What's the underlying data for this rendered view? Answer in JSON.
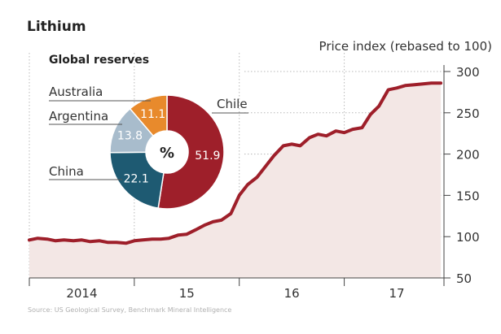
{
  "title": "Lithium",
  "source": "Source: US Geological Survey,  Benchmark Mineral Intelligence",
  "colors": {
    "line": "#9e1f2a",
    "area": "#f3e7e5",
    "grid": "#b8b8b8",
    "axis": "#444444",
    "text": "#333333",
    "source": "#b0b0b0"
  },
  "chart_data": [
    {
      "type": "area",
      "title": "Lithium",
      "ylabel": "Price index (rebased to 100)",
      "xlabel": "",
      "x_tick_labels": [
        "2014",
        "15",
        "16",
        "17"
      ],
      "y_ticks": [
        50,
        100,
        150,
        200,
        250,
        300
      ],
      "ylim": [
        50,
        300
      ],
      "xlim": [
        2014.0,
        2017.95
      ],
      "grid": "dotted, vertical at year boundaries, horizontal at y ticks",
      "y_axis_position": "right",
      "series": [
        {
          "x": [
            2014.0,
            2014.08,
            2014.17,
            2014.25,
            2014.33,
            2014.42,
            2014.5,
            2014.58,
            2014.67,
            2014.75,
            2014.83,
            2014.92,
            2015.0,
            2015.08,
            2015.17,
            2015.25,
            2015.33,
            2015.42,
            2015.5,
            2015.58,
            2015.67,
            2015.75,
            2015.83,
            2015.92,
            2016.0,
            2016.08,
            2016.17,
            2016.25,
            2016.33,
            2016.42,
            2016.5,
            2016.58,
            2016.67,
            2016.75,
            2016.83,
            2016.92,
            2017.0,
            2017.08,
            2017.17,
            2017.25,
            2017.33,
            2017.42,
            2017.5,
            2017.58,
            2017.67,
            2017.75,
            2017.83,
            2017.92
          ],
          "values": [
            96,
            98,
            97,
            95,
            96,
            95,
            96,
            94,
            95,
            93,
            93,
            92,
            95,
            96,
            97,
            97,
            98,
            102,
            103,
            108,
            114,
            118,
            120,
            128,
            150,
            163,
            172,
            185,
            198,
            210,
            212,
            210,
            220,
            224,
            222,
            228,
            226,
            230,
            232,
            248,
            258,
            278,
            280,
            283,
            284,
            285,
            286,
            286
          ]
        }
      ]
    },
    {
      "type": "pie",
      "title": "Global reserves",
      "center_label": "%",
      "labels": [
        "Chile",
        "China",
        "Argentina",
        "Australia"
      ],
      "values": [
        51.9,
        22.1,
        13.8,
        11.1
      ],
      "value_labels": [
        "51.9",
        "22.1",
        "13.8",
        "11.1"
      ],
      "colors": [
        "#9e1f2a",
        "#1e5a72",
        "#a8bccc",
        "#e88a2c"
      ]
    }
  ]
}
